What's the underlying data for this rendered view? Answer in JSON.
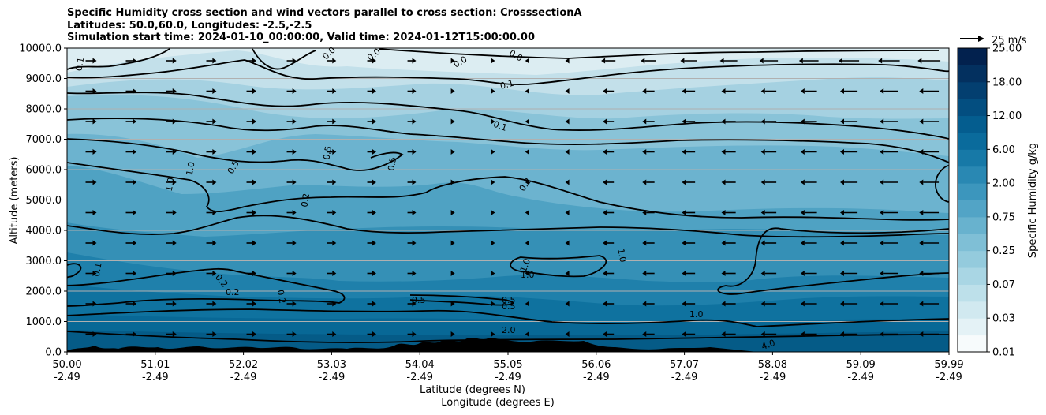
{
  "titles": {
    "line1": "Specific Humidity cross section and wind vectors parallel to cross section: CrosssectionA",
    "line2": "Latitudes: 50.0,60.0, Longitudes: -2.5,-2.5",
    "line3": "Simulation start time: 2024-01-10_00:00:00, Valid time: 2024-01-12T15:00:00.00"
  },
  "chart_data": {
    "type": "heatmap",
    "title": "Specific Humidity cross section and wind vectors parallel to cross section: CrosssectionA",
    "ylabel": "Altitude (meters)",
    "xlabel": "Latitude (degrees N)",
    "xlabel2": "Longitude (degrees E)",
    "ylim": [
      0,
      10000
    ],
    "xlim": [
      50.0,
      59.99
    ],
    "y_ticks": [
      "0.0",
      "1000.0",
      "2000.0",
      "3000.0",
      "4000.0",
      "5000.0",
      "6000.0",
      "7000.0",
      "8000.0",
      "9000.0",
      "10000.0"
    ],
    "x_ticks": [
      {
        "lat": "50.00",
        "lon": "-2.49"
      },
      {
        "lat": "51.01",
        "lon": "-2.49"
      },
      {
        "lat": "52.02",
        "lon": "-2.49"
      },
      {
        "lat": "53.03",
        "lon": "-2.49"
      },
      {
        "lat": "54.04",
        "lon": "-2.49"
      },
      {
        "lat": "55.05",
        "lon": "-2.49"
      },
      {
        "lat": "56.06",
        "lon": "-2.49"
      },
      {
        "lat": "57.07",
        "lon": "-2.49"
      },
      {
        "lat": "58.08",
        "lon": "-2.49"
      },
      {
        "lat": "59.09",
        "lon": "-2.49"
      },
      {
        "lat": "59.99",
        "lon": "-2.49"
      }
    ],
    "grid": "horizontal",
    "colorbar": {
      "label": "Specific Humidity g/kg",
      "ticks": [
        "0.01",
        "0.03",
        "0.07",
        "0.25",
        "0.75",
        "2.00",
        "6.00",
        "12.00",
        "18.00",
        "25.00"
      ],
      "levels": [
        0.01,
        0.02,
        0.03,
        0.05,
        0.07,
        0.1,
        0.25,
        0.5,
        0.75,
        1.0,
        2.0,
        4.0,
        6.0,
        8.0,
        12.0,
        15.0,
        18.0,
        21.0,
        25.0
      ]
    },
    "quiver_key": "25 m/s",
    "contour_labels": [
      "0.0",
      "0.1",
      "0.2",
      "0.5",
      "1.0",
      "2.0",
      "4.0"
    ],
    "wind_direction_by_latitude": [
      {
        "lat": 50.0,
        "direction": "northward"
      },
      {
        "lat": 54.5,
        "direction": "near calm"
      },
      {
        "lat": 55.5,
        "direction": "southward"
      },
      {
        "lat": 59.99,
        "direction": "southward"
      }
    ]
  }
}
